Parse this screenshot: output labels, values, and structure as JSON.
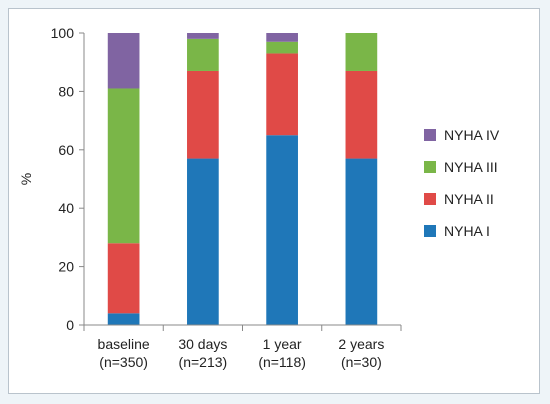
{
  "chart_data": {
    "type": "bar",
    "stacked": true,
    "title": "",
    "xlabel": "",
    "ylabel": "%",
    "ylim": [
      0,
      100
    ],
    "yticks": [
      0,
      20,
      40,
      60,
      80,
      100
    ],
    "grid": false,
    "legend_position": "right",
    "categories": [
      [
        "baseline",
        "(n=350)"
      ],
      [
        "30 days",
        "(n=213)"
      ],
      [
        "1 year",
        "(n=118)"
      ],
      [
        "2 years",
        "(n=30)"
      ]
    ],
    "series": [
      {
        "name": "NYHA I",
        "color": "#1f77b8",
        "values": [
          4,
          57,
          65,
          57
        ]
      },
      {
        "name": "NYHA II",
        "color": "#e04a47",
        "values": [
          24,
          30,
          28,
          30
        ]
      },
      {
        "name": "NYHA III",
        "color": "#7ab648",
        "values": [
          53,
          11,
          4,
          13
        ]
      },
      {
        "name": "NYHA IV",
        "color": "#8064a2",
        "values": [
          19,
          2,
          3,
          0
        ]
      }
    ]
  }
}
